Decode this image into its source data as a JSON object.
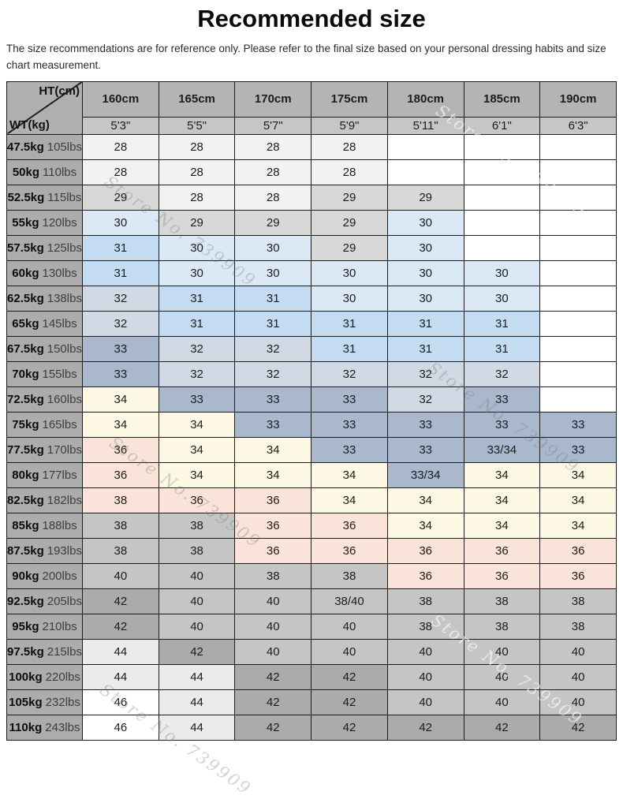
{
  "page": {
    "title": "Recommended size",
    "subtitle": "The size recommendations are for reference only. Please refer to the final size based on your personal dressing habits and size chart measurement.",
    "watermark_text": "Store No. 739909"
  },
  "table": {
    "corner": {
      "top_label": "HT(cm)",
      "bottom_label": "WT(kg)"
    },
    "height_headers_cm": [
      "160cm",
      "165cm",
      "170cm",
      "175cm",
      "180cm",
      "185cm",
      "190cm"
    ],
    "height_headers_ft": [
      "5'3\"",
      "5'5\"",
      "5'7\"",
      "5'9\"",
      "5'11\"",
      "6'1\"",
      "6'3\""
    ],
    "palette": {
      "w": "#ffffff",
      "f": "#f2f2f1",
      "g1": "#d8d8d7",
      "b1": "#dbe9f6",
      "b2": "#c4dcf1",
      "s1": "#d1d9e5",
      "s2": "#a9b8cd",
      "c": "#fdf8e3",
      "p": "#fae3d9",
      "g2": "#c5c5c4",
      "g3": "#ababaa",
      "g4": "#ebebea"
    },
    "rows": [
      {
        "kg": "47.5kg",
        "lbs": "105lbs",
        "values": [
          "28",
          "28",
          "28",
          "28",
          "",
          "",
          ""
        ],
        "colors": [
          "f",
          "f",
          "f",
          "f",
          "w",
          "w",
          "w"
        ]
      },
      {
        "kg": "50kg",
        "lbs": "110lbs",
        "values": [
          "28",
          "28",
          "28",
          "28",
          "",
          "",
          ""
        ],
        "colors": [
          "f",
          "f",
          "f",
          "f",
          "w",
          "w",
          "w"
        ]
      },
      {
        "kg": "52.5kg",
        "lbs": "115lbs",
        "values": [
          "29",
          "28",
          "28",
          "29",
          "29",
          "",
          ""
        ],
        "colors": [
          "g1",
          "f",
          "f",
          "g1",
          "g1",
          "w",
          "w"
        ]
      },
      {
        "kg": "55kg",
        "lbs": "120lbs",
        "values": [
          "30",
          "29",
          "29",
          "29",
          "30",
          "",
          ""
        ],
        "colors": [
          "b1",
          "g1",
          "g1",
          "g1",
          "b1",
          "w",
          "w"
        ]
      },
      {
        "kg": "57.5kg",
        "lbs": "125lbs",
        "values": [
          "31",
          "30",
          "30",
          "29",
          "30",
          "",
          ""
        ],
        "colors": [
          "b2",
          "b1",
          "b1",
          "g1",
          "b1",
          "w",
          "w"
        ]
      },
      {
        "kg": "60kg",
        "lbs": "130lbs",
        "values": [
          "31",
          "30",
          "30",
          "30",
          "30",
          "30",
          ""
        ],
        "colors": [
          "b2",
          "b1",
          "b1",
          "b1",
          "b1",
          "b1",
          "w"
        ]
      },
      {
        "kg": "62.5kg",
        "lbs": "138lbs",
        "values": [
          "32",
          "31",
          "31",
          "30",
          "30",
          "30",
          ""
        ],
        "colors": [
          "s1",
          "b2",
          "b2",
          "b1",
          "b1",
          "b1",
          "w"
        ]
      },
      {
        "kg": "65kg",
        "lbs": "145lbs",
        "values": [
          "32",
          "31",
          "31",
          "31",
          "31",
          "31",
          ""
        ],
        "colors": [
          "s1",
          "b2",
          "b2",
          "b2",
          "b2",
          "b2",
          "w"
        ]
      },
      {
        "kg": "67.5kg",
        "lbs": "150lbs",
        "values": [
          "33",
          "32",
          "32",
          "31",
          "31",
          "31",
          ""
        ],
        "colors": [
          "s2",
          "s1",
          "s1",
          "b2",
          "b2",
          "b2",
          "w"
        ]
      },
      {
        "kg": "70kg",
        "lbs": "155lbs",
        "values": [
          "33",
          "32",
          "32",
          "32",
          "32",
          "32",
          ""
        ],
        "colors": [
          "s2",
          "s1",
          "s1",
          "s1",
          "s1",
          "s1",
          "w"
        ]
      },
      {
        "kg": "72.5kg",
        "lbs": "160lbs",
        "values": [
          "34",
          "33",
          "33",
          "33",
          "32",
          "33",
          ""
        ],
        "colors": [
          "c",
          "s2",
          "s2",
          "s2",
          "s1",
          "s2",
          "w"
        ]
      },
      {
        "kg": "75kg",
        "lbs": "165lbs",
        "values": [
          "34",
          "34",
          "33",
          "33",
          "33",
          "33",
          "33"
        ],
        "colors": [
          "c",
          "c",
          "s2",
          "s2",
          "s2",
          "s2",
          "s2"
        ]
      },
      {
        "kg": "77.5kg",
        "lbs": "170lbs",
        "values": [
          "36",
          "34",
          "34",
          "33",
          "33",
          "33/34",
          "33"
        ],
        "colors": [
          "p",
          "c",
          "c",
          "s2",
          "s2",
          "s2",
          "s2"
        ]
      },
      {
        "kg": "80kg",
        "lbs": "177lbs",
        "values": [
          "36",
          "34",
          "34",
          "34",
          "33/34",
          "34",
          "34"
        ],
        "colors": [
          "p",
          "c",
          "c",
          "c",
          "s2",
          "c",
          "c"
        ]
      },
      {
        "kg": "82.5kg",
        "lbs": "182lbs",
        "values": [
          "38",
          "36",
          "36",
          "34",
          "34",
          "34",
          "34"
        ],
        "colors": [
          "p",
          "p",
          "p",
          "c",
          "c",
          "c",
          "c"
        ]
      },
      {
        "kg": "85kg",
        "lbs": "188lbs",
        "values": [
          "38",
          "38",
          "36",
          "36",
          "34",
          "34",
          "34"
        ],
        "colors": [
          "g2",
          "g2",
          "p",
          "p",
          "c",
          "c",
          "c"
        ]
      },
      {
        "kg": "87.5kg",
        "lbs": "193lbs",
        "values": [
          "38",
          "38",
          "36",
          "36",
          "36",
          "36",
          "36"
        ],
        "colors": [
          "g2",
          "g2",
          "p",
          "p",
          "p",
          "p",
          "p"
        ]
      },
      {
        "kg": "90kg",
        "lbs": "200lbs",
        "values": [
          "40",
          "40",
          "38",
          "38",
          "36",
          "36",
          "36"
        ],
        "colors": [
          "g2",
          "g2",
          "g2",
          "g2",
          "p",
          "p",
          "p"
        ]
      },
      {
        "kg": "92.5kg",
        "lbs": "205lbs",
        "values": [
          "42",
          "40",
          "40",
          "38/40",
          "38",
          "38",
          "38"
        ],
        "colors": [
          "g3",
          "g2",
          "g2",
          "g2",
          "g2",
          "g2",
          "g2"
        ]
      },
      {
        "kg": "95kg",
        "lbs": "210lbs",
        "values": [
          "42",
          "40",
          "40",
          "40",
          "38",
          "38",
          "38"
        ],
        "colors": [
          "g3",
          "g2",
          "g2",
          "g2",
          "g2",
          "g2",
          "g2"
        ]
      },
      {
        "kg": "97.5kg",
        "lbs": "215lbs",
        "values": [
          "44",
          "42",
          "40",
          "40",
          "40",
          "40",
          "40"
        ],
        "colors": [
          "g4",
          "g3",
          "g2",
          "g2",
          "g2",
          "g2",
          "g2"
        ]
      },
      {
        "kg": "100kg",
        "lbs": "220lbs",
        "values": [
          "44",
          "44",
          "42",
          "42",
          "40",
          "40",
          "40"
        ],
        "colors": [
          "g4",
          "g4",
          "g3",
          "g3",
          "g2",
          "g2",
          "g2"
        ]
      },
      {
        "kg": "105kg",
        "lbs": "232lbs",
        "values": [
          "46",
          "44",
          "42",
          "42",
          "40",
          "40",
          "40"
        ],
        "colors": [
          "w",
          "g4",
          "g3",
          "g3",
          "g2",
          "g2",
          "g2"
        ]
      },
      {
        "kg": "110kg",
        "lbs": "243lbs",
        "values": [
          "46",
          "44",
          "42",
          "42",
          "42",
          "42",
          "42"
        ],
        "colors": [
          "w",
          "g4",
          "g3",
          "g3",
          "g3",
          "g3",
          "g3"
        ]
      }
    ]
  }
}
